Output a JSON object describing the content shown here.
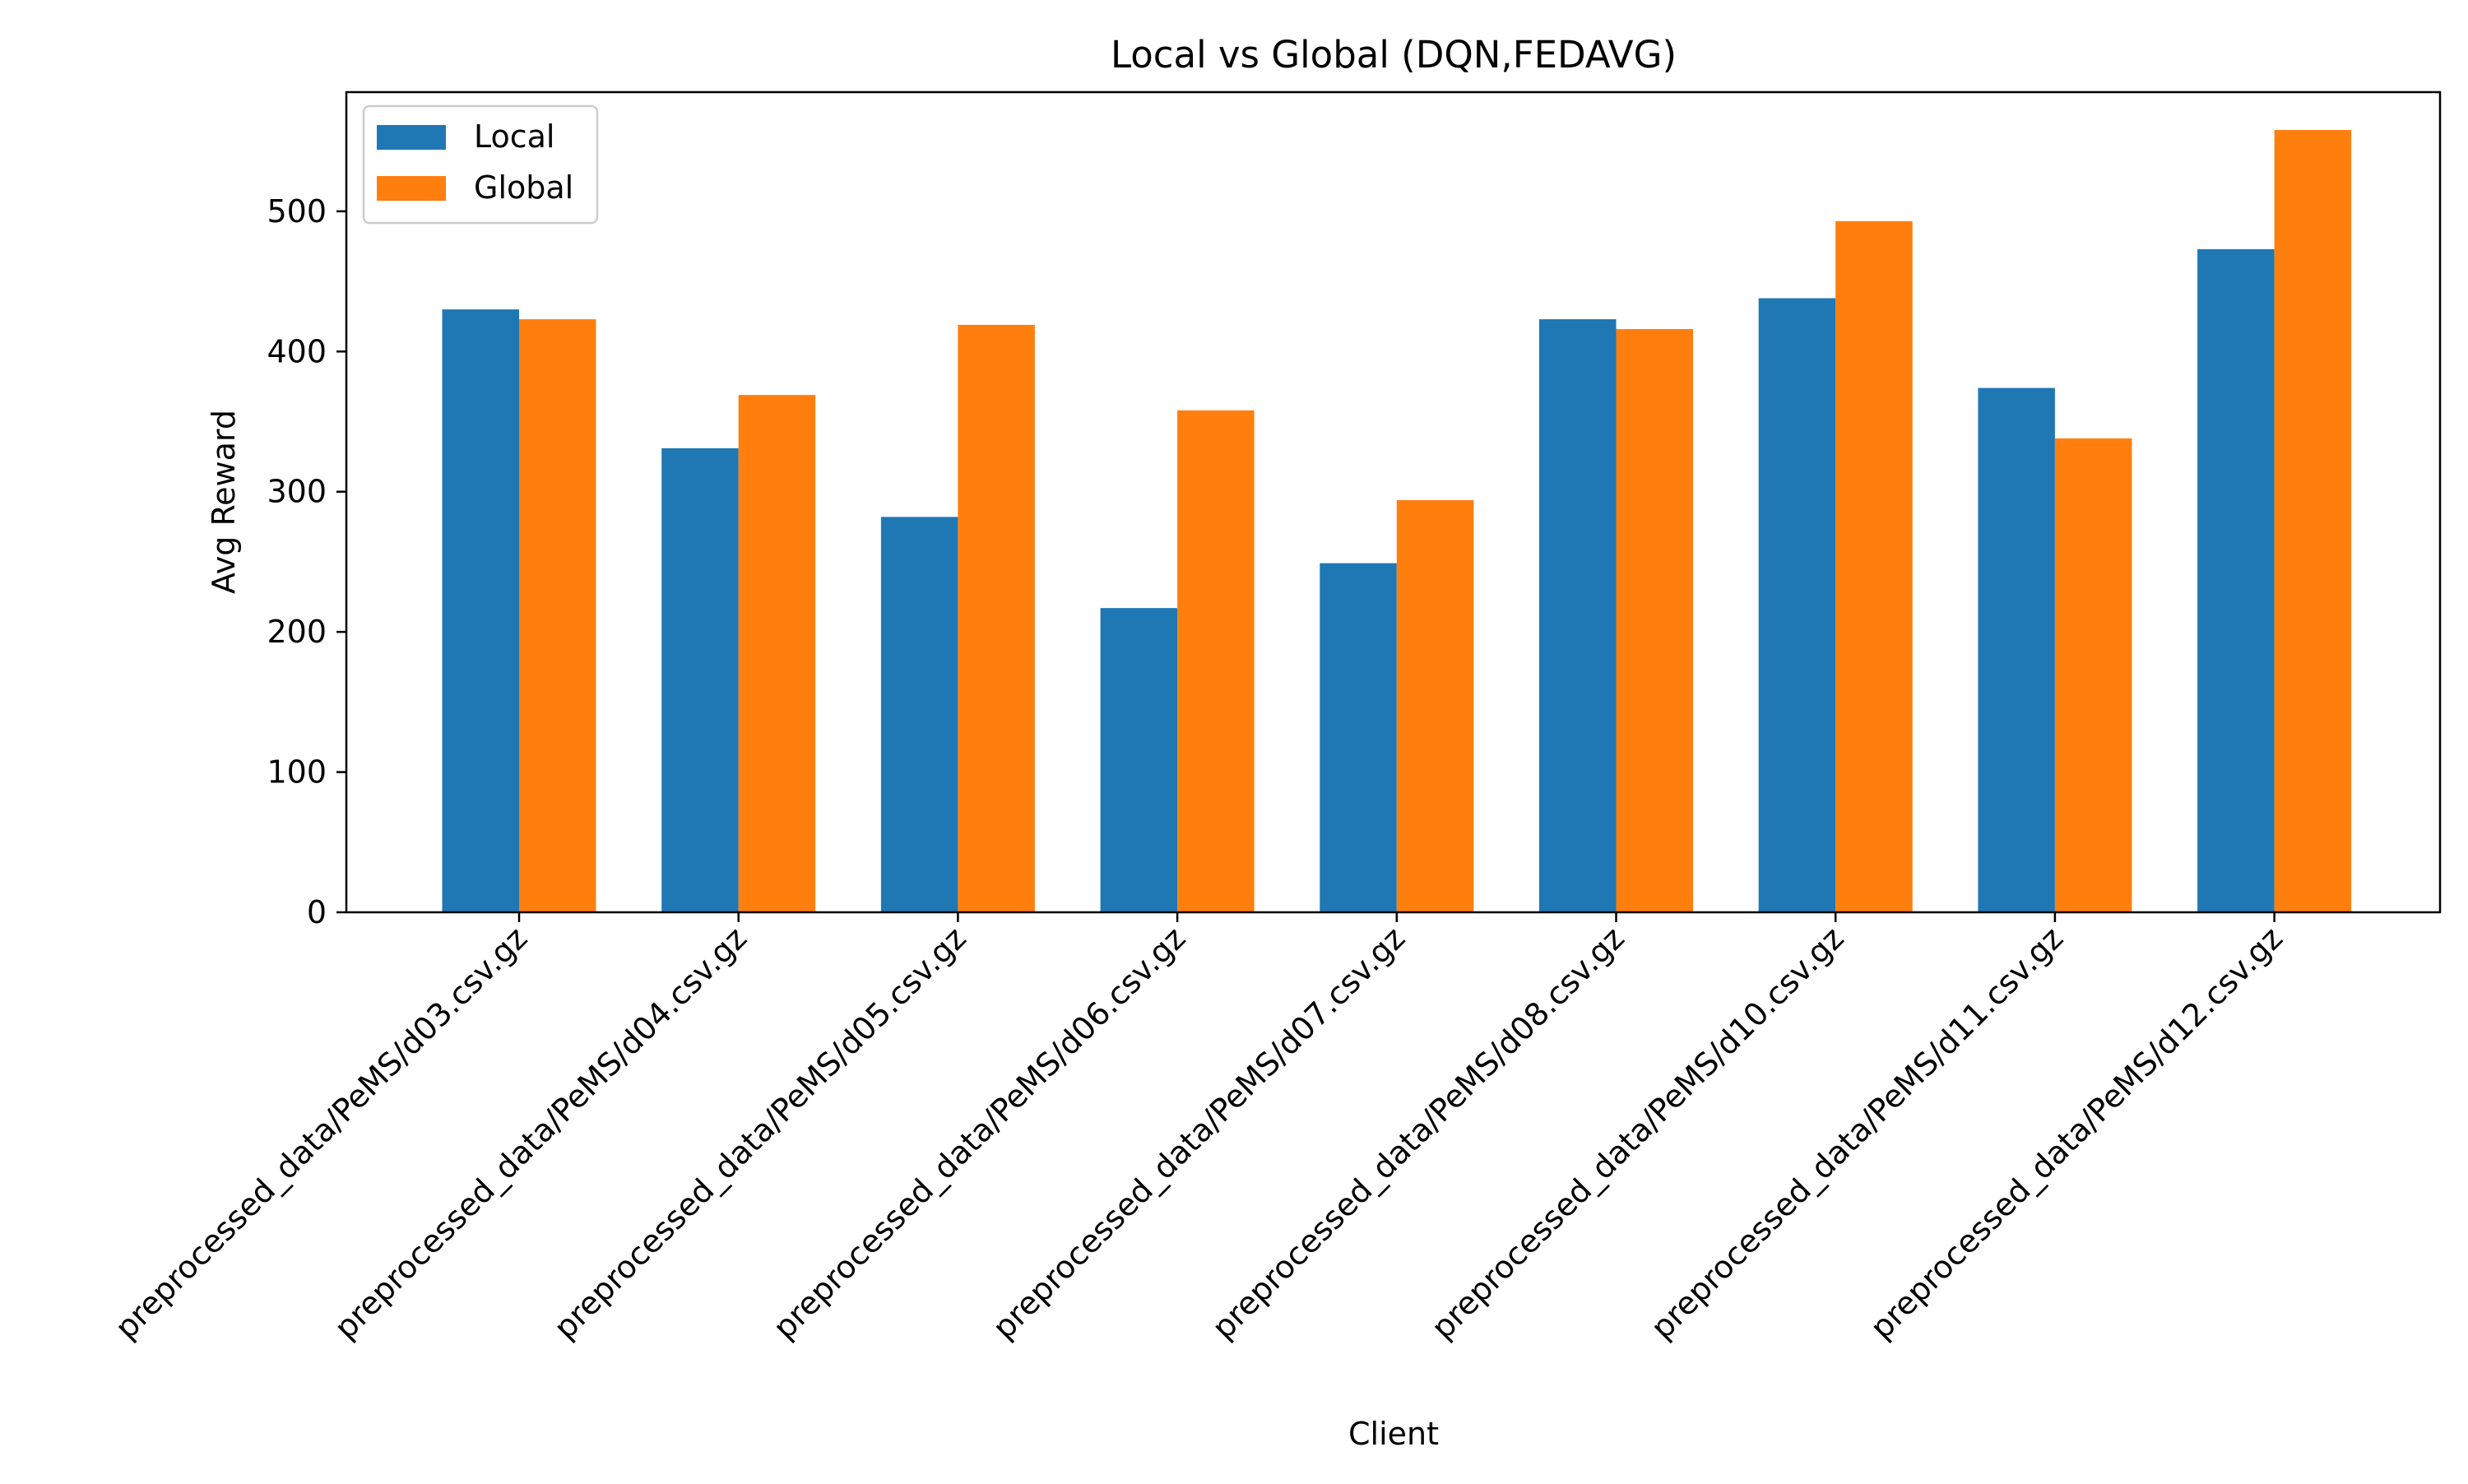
{
  "chart_data": {
    "type": "bar",
    "title": "Local vs Global (DQN,FEDAVG)",
    "xlabel": "Client",
    "ylabel": "Avg Reward",
    "ylim": [
      0,
      585
    ],
    "yticks": [
      0,
      100,
      200,
      300,
      400,
      500
    ],
    "grid": false,
    "legend_position": "top-left",
    "categories": [
      "preprocessed_data/PeMS/d03.csv.gz",
      "preprocessed_data/PeMS/d04.csv.gz",
      "preprocessed_data/PeMS/d05.csv.gz",
      "preprocessed_data/PeMS/d06.csv.gz",
      "preprocessed_data/PeMS/d07.csv.gz",
      "preprocessed_data/PeMS/d08.csv.gz",
      "preprocessed_data/PeMS/d10.csv.gz",
      "preprocessed_data/PeMS/d11.csv.gz",
      "preprocessed_data/PeMS/d12.csv.gz"
    ],
    "series": [
      {
        "name": "Local",
        "color": "#1f77b4",
        "values": [
          430,
          331,
          282,
          217,
          249,
          423,
          438,
          374,
          473
        ]
      },
      {
        "name": "Global",
        "color": "#ff7f0e",
        "values": [
          423,
          369,
          419,
          358,
          294,
          416,
          493,
          338,
          558
        ]
      }
    ]
  }
}
